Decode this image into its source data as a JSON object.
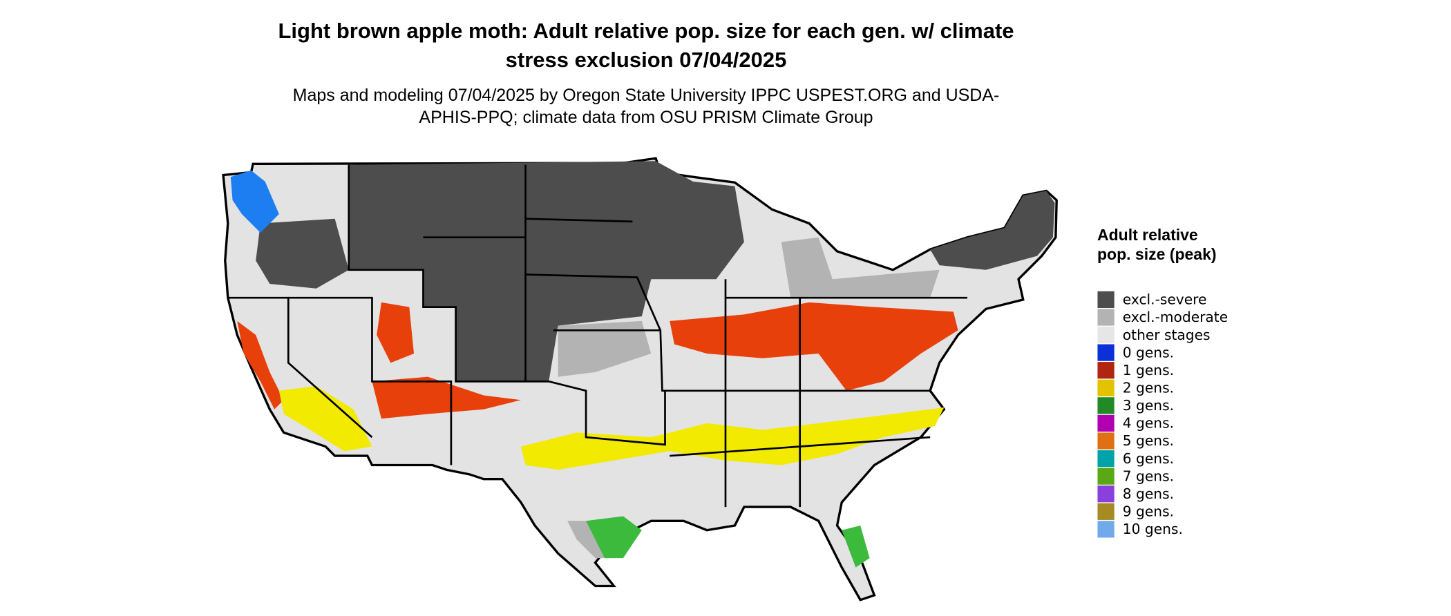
{
  "header": {
    "title": "Light brown apple moth: Adult relative pop. size for each gen. w/ climate stress exclusion 07/04/2025",
    "subtitle": "Maps and modeling 07/04/2025 by Oregon State University IPPC USPEST.ORG and USDA-APHIS-PPQ; climate data from OSU PRISM Climate Group"
  },
  "legend": {
    "title": "Adult relative pop. size (peak)",
    "items": [
      {
        "label": "excl.-severe",
        "color": "#4d4d4d"
      },
      {
        "label": "excl.-moderate",
        "color": "#b3b3b3"
      },
      {
        "label": "other stages",
        "color": "#e6e6e6"
      },
      {
        "label": "0 gens.",
        "color": "#0b30d8"
      },
      {
        "label": "1 gens.",
        "color": "#b0250f"
      },
      {
        "label": "2 gens.",
        "color": "#e3c200"
      },
      {
        "label": "3 gens.",
        "color": "#218a26"
      },
      {
        "label": "4 gens.",
        "color": "#b000b0"
      },
      {
        "label": "5 gens.",
        "color": "#df7014"
      },
      {
        "label": "6 gens.",
        "color": "#00a3a8"
      },
      {
        "label": "7 gens.",
        "color": "#5aa814"
      },
      {
        "label": "8 gens.",
        "color": "#8a40dc"
      },
      {
        "label": "9 gens.",
        "color": "#a68a22"
      },
      {
        "label": "10 gens.",
        "color": "#70aaea"
      }
    ]
  }
}
